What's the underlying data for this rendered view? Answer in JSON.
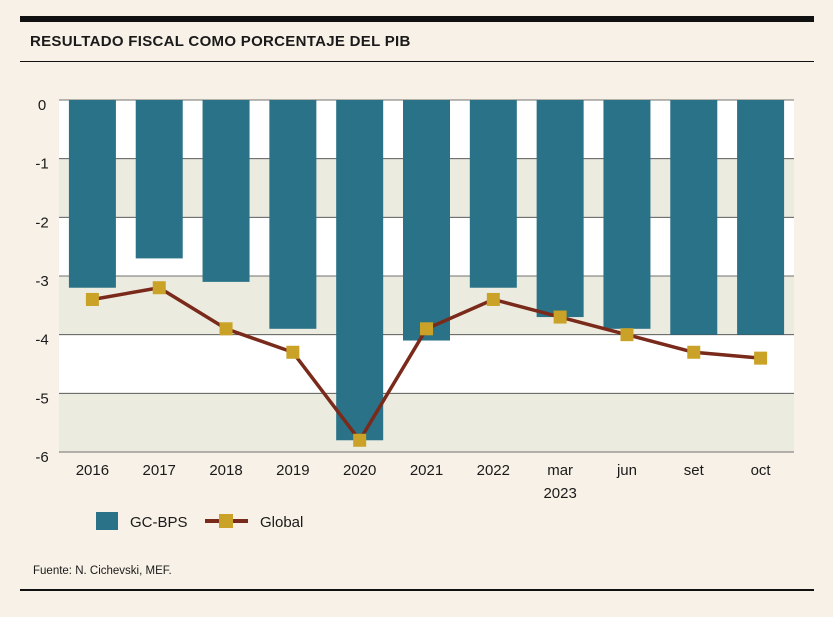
{
  "header": {
    "title": "RESULTADO FISCAL COMO PORCENTAJE DEL PIB"
  },
  "footer": {
    "source": "Fuente: N. Cichevski, MEF."
  },
  "colors": {
    "bar": "#2a7287",
    "line": "#7a2a1a",
    "marker": "#c9a227",
    "band": "#ecebe0",
    "plot_bg": "#ffffff",
    "grid": "#444444"
  },
  "chart_data": {
    "type": "bar",
    "title": "RESULTADO FISCAL COMO PORCENTAJE DEL PIB",
    "categories": [
      "2016",
      "2017",
      "2018",
      "2019",
      "2020",
      "2021",
      "2022",
      "mar",
      "jun",
      "set",
      "oct"
    ],
    "category_sublabels": [
      "",
      "",
      "",
      "",
      "",
      "",
      "",
      "2023",
      "",
      "",
      ""
    ],
    "ylim": [
      -6,
      0
    ],
    "yticks": [
      0,
      -1,
      -2,
      -3,
      -4,
      -5,
      -6
    ],
    "ytick_labels": [
      "0",
      "-1",
      "-2",
      "-3",
      "-4",
      "-5",
      "-6"
    ],
    "xlabel": "",
    "ylabel": "",
    "series": [
      {
        "name": "GC-BPS",
        "kind": "bar",
        "values": [
          -3.2,
          -2.7,
          -3.1,
          -3.9,
          -5.8,
          -4.1,
          -3.2,
          -3.7,
          -3.9,
          -4.0,
          -4.0
        ]
      },
      {
        "name": "Global",
        "kind": "line",
        "values": [
          -3.4,
          -3.2,
          -3.9,
          -4.3,
          -5.8,
          -3.9,
          -3.4,
          -3.7,
          -4.0,
          -4.3,
          -4.4
        ]
      }
    ],
    "legend": [
      "GC-BPS",
      "Global"
    ],
    "legend_position": "bottom-left"
  }
}
